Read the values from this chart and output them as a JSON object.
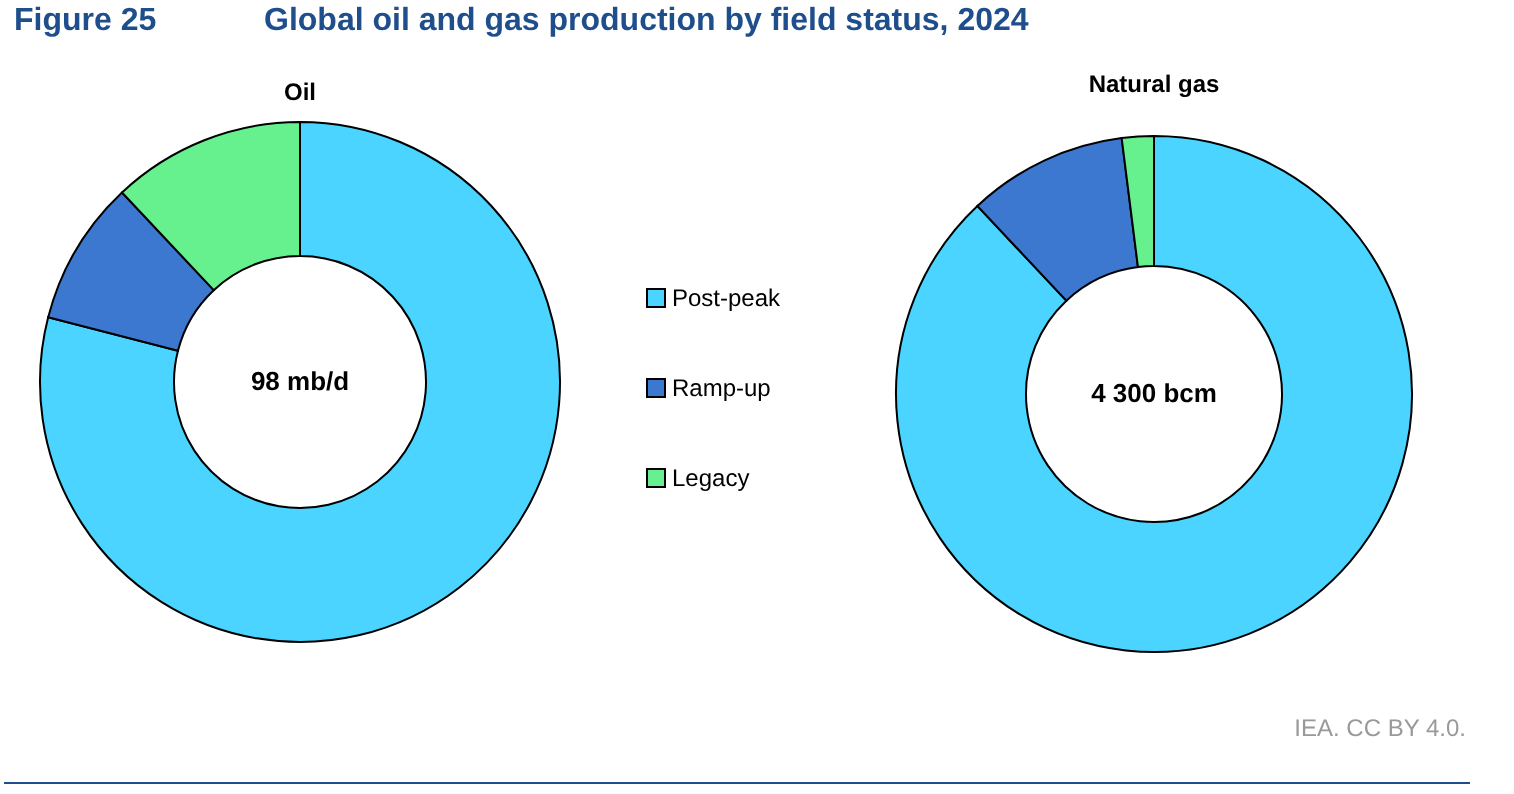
{
  "chart_data": [
    {
      "type": "donut",
      "title": "Oil",
      "annotations": [
        "Figure 25",
        "Global oil and gas production by field status, 2024",
        "98 mb/d"
      ],
      "categories": [
        "Post-peak",
        "Ramp-up",
        "Legacy"
      ],
      "values": [
        79,
        9,
        12
      ],
      "colors": [
        "#4ad4ff",
        "#3c78d0",
        "#66f08e"
      ],
      "legend": "right"
    },
    {
      "type": "donut",
      "title": "Natural gas",
      "annotations": [
        "4 300 bcm",
        "IEA. CC BY 4.0."
      ],
      "categories": [
        null,
        null,
        null
      ],
      "values": [
        88,
        10,
        2
      ],
      "colors": [
        "#4ad4ff",
        "#3c78d0",
        "#66f08e"
      ]
    }
  ]
}
